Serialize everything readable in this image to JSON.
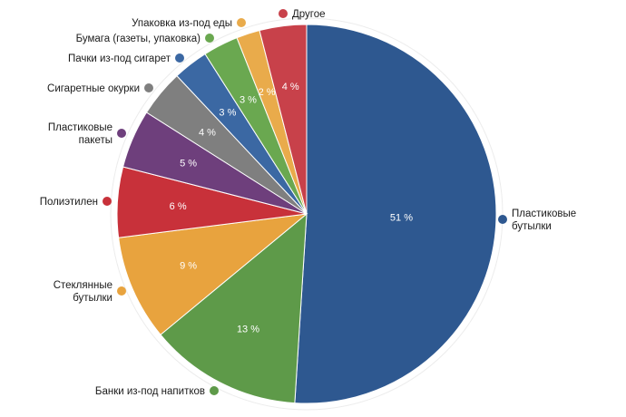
{
  "chart_data": {
    "type": "pie",
    "slices": [
      {
        "label": "Пластиковые бутылки",
        "value": 51,
        "value_label": "51 %",
        "color": "#2e5890"
      },
      {
        "label": "Банки из-под напитков",
        "value": 13,
        "value_label": "13 %",
        "color": "#5e9a49"
      },
      {
        "label": "Стеклянные бутылки",
        "value": 9,
        "value_label": "9 %",
        "color": "#e8a33e"
      },
      {
        "label": "Полиэтилен",
        "value": 6,
        "value_label": "6 %",
        "color": "#c8313a"
      },
      {
        "label": "Пластиковые пакеты",
        "value": 5,
        "value_label": "5 %",
        "color": "#6e3f7c"
      },
      {
        "label": "Сигаретные окурки",
        "value": 4,
        "value_label": "4 %",
        "color": "#7f7f7f"
      },
      {
        "label": "Пачки из-под сигарет",
        "value": 3,
        "value_label": "3 %",
        "color": "#3b68a3"
      },
      {
        "label": "Бумага (газеты, упаковка)",
        "value": 3,
        "value_label": "3 %",
        "color": "#6aa850"
      },
      {
        "label": "Упаковка из-под еды",
        "value": 2,
        "value_label": "2 %",
        "color": "#e9ab4b"
      },
      {
        "label": "Другое",
        "value": 4,
        "value_label": "4 %",
        "color": "#c8414a"
      }
    ]
  }
}
